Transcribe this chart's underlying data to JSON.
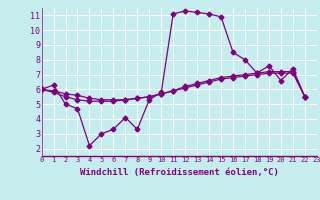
{
  "xlabel": "Windchill (Refroidissement éolien,°C)",
  "xlim": [
    0,
    23
  ],
  "ylim": [
    1.5,
    11.5
  ],
  "yticks": [
    2,
    3,
    4,
    5,
    6,
    7,
    8,
    9,
    10,
    11
  ],
  "xticks": [
    0,
    1,
    2,
    3,
    4,
    5,
    6,
    7,
    8,
    9,
    10,
    11,
    12,
    13,
    14,
    15,
    16,
    17,
    18,
    19,
    20,
    21,
    22,
    23
  ],
  "background_color": "#c5eded",
  "line_color": "#800080",
  "grid_color": "#ffffff",
  "lines": [
    [
      6.0,
      6.3,
      5.0,
      4.7,
      2.2,
      3.0,
      3.3,
      4.1,
      3.3,
      5.3,
      5.8,
      11.1,
      11.3,
      11.2,
      11.1,
      10.9,
      8.5,
      8.0,
      7.1,
      7.6,
      6.6,
      7.4,
      5.5
    ],
    [
      6.0,
      5.8,
      5.5,
      5.3,
      5.2,
      5.2,
      5.2,
      5.3,
      5.4,
      5.5,
      5.7,
      5.9,
      6.1,
      6.3,
      6.5,
      6.7,
      6.8,
      6.9,
      7.0,
      7.1,
      7.1,
      7.1,
      5.5
    ],
    [
      6.0,
      5.9,
      5.7,
      5.6,
      5.4,
      5.3,
      5.3,
      5.3,
      5.4,
      5.5,
      5.7,
      5.9,
      6.2,
      6.4,
      6.6,
      6.8,
      6.9,
      7.0,
      7.1,
      7.2,
      7.2,
      7.2,
      5.5
    ]
  ],
  "marker": "D",
  "markersize": 2.5,
  "linewidth": 0.9
}
